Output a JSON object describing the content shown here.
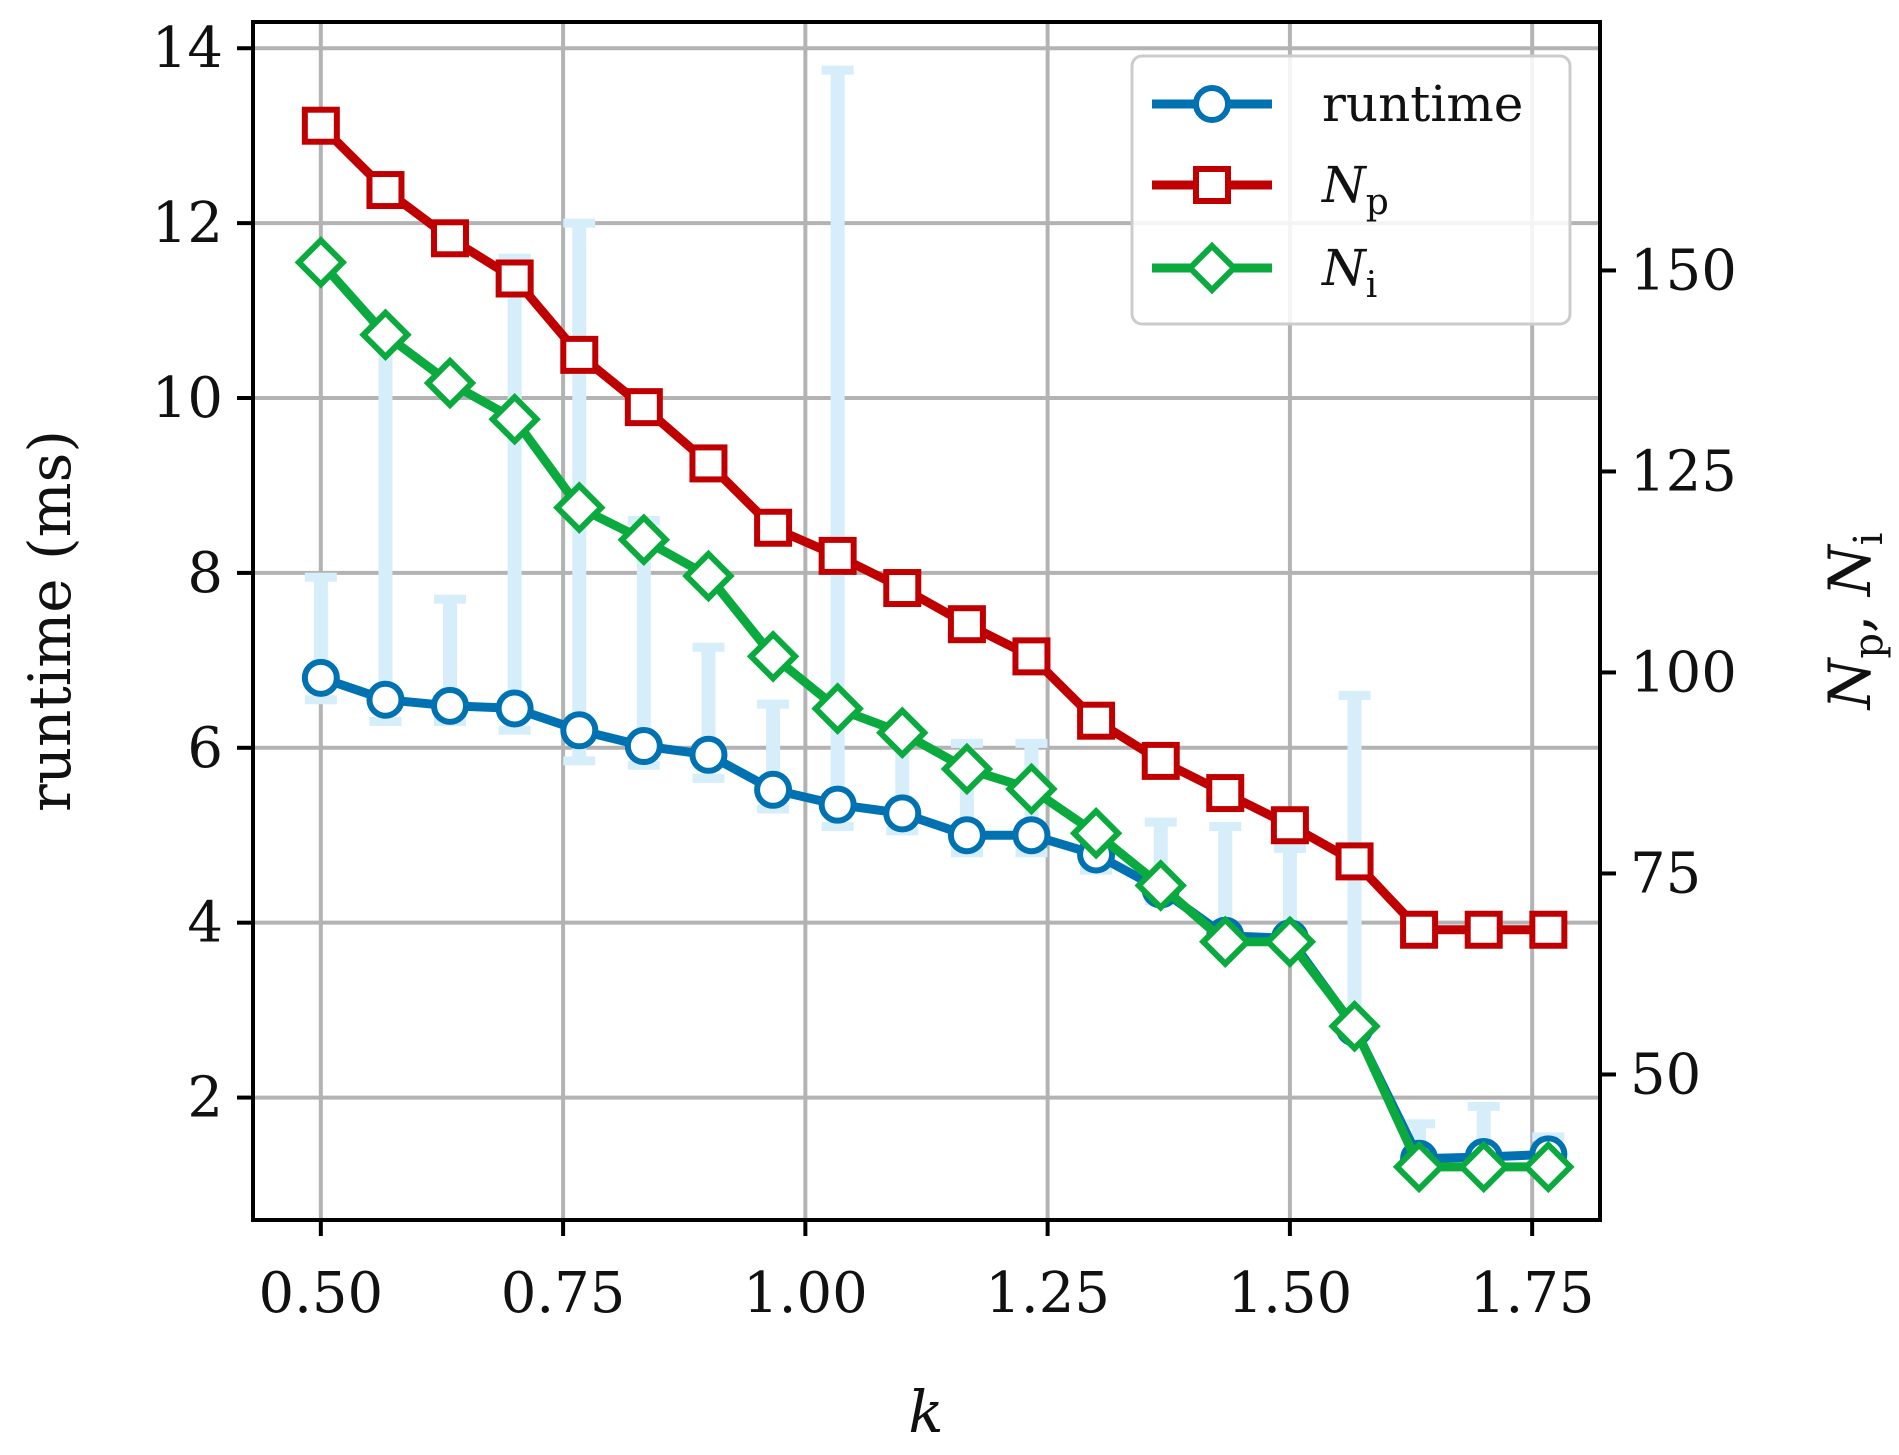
{
  "chart_data": {
    "type": "line",
    "xlabel": "k",
    "ylabel_left": "runtime (ms)",
    "ylabel_right": {
      "a": "N",
      "a_sub": "p",
      "sep": ", ",
      "b": "N",
      "b_sub": "i"
    },
    "x": [
      0.5,
      0.5667,
      0.6333,
      0.7,
      0.7667,
      0.8333,
      0.9,
      0.9667,
      1.0333,
      1.1,
      1.1667,
      1.2333,
      1.3,
      1.3667,
      1.4333,
      1.5,
      1.5667,
      1.6333,
      1.7,
      1.7667
    ],
    "xlim": [
      0.43,
      1.82
    ],
    "xticks": [
      "0.50",
      "0.75",
      "1.00",
      "1.25",
      "1.50",
      "1.75"
    ],
    "xtick_values": [
      0.5,
      0.75,
      1.0,
      1.25,
      1.5,
      1.75
    ],
    "ylim_left": [
      0.6,
      14.3
    ],
    "yticks_left": [
      "2",
      "4",
      "6",
      "8",
      "10",
      "12",
      "14"
    ],
    "ytick_values_left": [
      2,
      4,
      6,
      8,
      10,
      12,
      14
    ],
    "ylim_right": [
      31.9,
      180.9
    ],
    "yticks_right": [
      "50",
      "75",
      "100",
      "125",
      "150"
    ],
    "ytick_values_right": [
      50,
      75,
      100,
      125,
      150
    ],
    "grid": true,
    "legend_position": "top-right",
    "series": [
      {
        "name": "runtime",
        "axis": "left",
        "color": "#0072B2",
        "marker": "circle",
        "values": [
          6.8,
          6.55,
          6.48,
          6.45,
          6.2,
          6.02,
          5.92,
          5.52,
          5.35,
          5.25,
          5.0,
          5.0,
          4.78,
          4.38,
          3.85,
          3.82,
          2.8,
          1.3,
          1.32,
          1.35
        ],
        "error_upper": [
          7.95,
          10.8,
          7.7,
          11.6,
          12.0,
          8.6,
          7.15,
          6.5,
          13.75,
          6.25,
          6.05,
          6.05,
          4.95,
          5.15,
          5.1,
          4.85,
          6.6,
          1.7,
          1.9,
          1.55
        ],
        "error_lower": [
          6.55,
          6.3,
          6.3,
          6.2,
          5.85,
          5.8,
          5.65,
          5.3,
          5.1,
          5.05,
          4.8,
          4.8,
          4.6,
          4.25,
          3.75,
          3.7,
          2.7,
          1.2,
          1.2,
          1.25
        ],
        "error_color": "#d6edfa"
      },
      {
        "name": "N_p",
        "label": {
          "main": "N",
          "sub": "p"
        },
        "axis": "right",
        "color": "#C00000",
        "marker": "square",
        "values": [
          168.0,
          160.0,
          154.0,
          149.0,
          139.5,
          133.0,
          126.0,
          118.0,
          114.5,
          110.5,
          106.0,
          102.0,
          94.0,
          89.0,
          85.0,
          81.0,
          76.5,
          68.0,
          68.0,
          68.0
        ]
      },
      {
        "name": "N_i",
        "label": {
          "main": "N",
          "sub": "i"
        },
        "axis": "right",
        "color": "#0BAA3F",
        "marker": "diamond",
        "values": [
          151.0,
          142.0,
          136.0,
          131.5,
          120.5,
          116.5,
          112.0,
          102.0,
          95.5,
          92.5,
          88.0,
          85.5,
          80.0,
          73.5,
          66.5,
          66.5,
          56.0,
          38.5,
          38.5,
          38.5
        ]
      }
    ]
  }
}
